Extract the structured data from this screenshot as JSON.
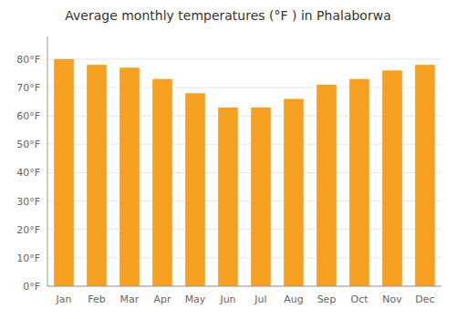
{
  "chart_data": {
    "type": "bar",
    "title": "Average monthly temperatures (°F ) in Phalaborwa",
    "categories": [
      "Jan",
      "Feb",
      "Mar",
      "Apr",
      "May",
      "Jun",
      "Jul",
      "Aug",
      "Sep",
      "Oct",
      "Nov",
      "Dec"
    ],
    "values": [
      80,
      78,
      77,
      73,
      68,
      63,
      63,
      66,
      71,
      73,
      76,
      78
    ],
    "color": "#F5A020",
    "ylim": [
      0,
      88
    ],
    "yticks": [
      {
        "value": 0,
        "label": "0°F"
      },
      {
        "value": 10,
        "label": "10°F"
      },
      {
        "value": 20,
        "label": "20°F"
      },
      {
        "value": 30,
        "label": "30°F"
      },
      {
        "value": 40,
        "label": "40°F"
      },
      {
        "value": 50,
        "label": "50°F"
      },
      {
        "value": 60,
        "label": "60°F"
      },
      {
        "value": 70,
        "label": "70°F"
      },
      {
        "value": 80,
        "label": "80°F"
      }
    ],
    "grid": true
  }
}
